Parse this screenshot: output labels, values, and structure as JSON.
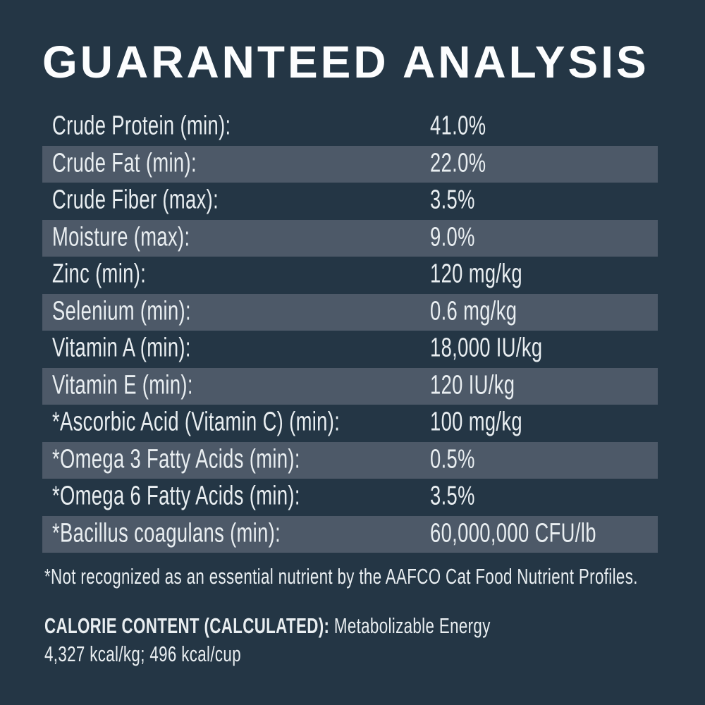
{
  "title": "GUARANTEED ANALYSIS",
  "table": {
    "rows": [
      {
        "label": "Crude Protein (min):",
        "value": "41.0%"
      },
      {
        "label": "Crude Fat (min):",
        "value": "22.0%"
      },
      {
        "label": "Crude Fiber (max):",
        "value": "3.5%"
      },
      {
        "label": "Moisture (max):",
        "value": "9.0%"
      },
      {
        "label": "Zinc (min):",
        "value": "120 mg/kg"
      },
      {
        "label": "Selenium (min):",
        "value": "0.6 mg/kg"
      },
      {
        "label": "Vitamin A (min):",
        "value": "18,000 IU/kg"
      },
      {
        "label": "Vitamin E (min):",
        "value": "120 IU/kg"
      },
      {
        "label": "*Ascorbic Acid (Vitamin C) (min):",
        "value": "100 mg/kg"
      },
      {
        "label": "*Omega 3 Fatty Acids (min):",
        "value": "0.5%"
      },
      {
        "label": "*Omega 6 Fatty Acids (min):",
        "value": "3.5%"
      },
      {
        "label": "*Bacillus coagulans (min):",
        "value": "60,000,000 CFU/lb"
      }
    ]
  },
  "footnote": "*Not recognized as an essential nutrient by the AAFCO Cat Food Nutrient Profiles.",
  "calorie": {
    "heading": "CALORIE CONTENT (CALCULATED):",
    "description": " Metabolizable Energy",
    "values": "4,327 kcal/kg; 496 kcal/cup"
  },
  "colors": {
    "background": "#243645",
    "stripe": "#4d5968",
    "text": "#e9eef1",
    "title": "#fcfdfe"
  }
}
